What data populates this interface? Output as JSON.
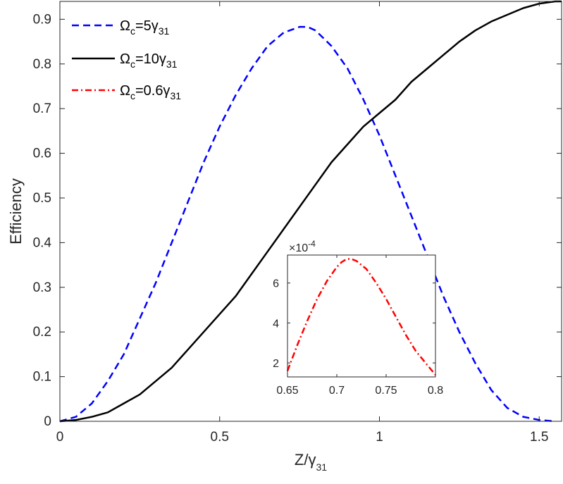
{
  "chart_data": [
    {
      "type": "line",
      "xlabel": {
        "main": "Z/γ",
        "sub": "31"
      },
      "ylabel": "Efficiency",
      "xlim": [
        0,
        1.57
      ],
      "ylim": [
        0,
        0.94
      ],
      "xticks": [
        0,
        0.5,
        1,
        1.5
      ],
      "xtick_labels": [
        "0",
        "0.5",
        "1",
        "1.5"
      ],
      "yticks": [
        0,
        0.1,
        0.2,
        0.3,
        0.4,
        0.5,
        0.6,
        0.7,
        0.8,
        0.9
      ],
      "ytick_labels": [
        "0",
        "0.1",
        "0.2",
        "0.3",
        "0.4",
        "0.5",
        "0.6",
        "0.7",
        "0.8",
        "0.9"
      ],
      "grid": false,
      "legend_position": "top-left",
      "series": [
        {
          "name": "Ωc=5γ31",
          "legend": {
            "omega": "Ω",
            "omega_sub": "c",
            "mid": "=5γ",
            "gamma_sub": "31"
          },
          "color": "#0000ff",
          "style": "dashed",
          "x": [
            0,
            0.05,
            0.1,
            0.15,
            0.2,
            0.25,
            0.3,
            0.35,
            0.4,
            0.45,
            0.5,
            0.55,
            0.6,
            0.65,
            0.7,
            0.75,
            0.775,
            0.8,
            0.85,
            0.9,
            0.95,
            1.0,
            1.05,
            1.1,
            1.15,
            1.2,
            1.25,
            1.3,
            1.35,
            1.4,
            1.45,
            1.5,
            1.55
          ],
          "y": [
            0,
            0.01,
            0.04,
            0.09,
            0.15,
            0.23,
            0.31,
            0.4,
            0.49,
            0.58,
            0.66,
            0.73,
            0.79,
            0.84,
            0.87,
            0.883,
            0.883,
            0.875,
            0.84,
            0.79,
            0.72,
            0.64,
            0.55,
            0.46,
            0.37,
            0.28,
            0.2,
            0.13,
            0.07,
            0.03,
            0.01,
            0.003,
            0
          ]
        },
        {
          "name": "Ωc=10γ31",
          "legend": {
            "omega": "Ω",
            "omega_sub": "c",
            "mid": "=10γ",
            "gamma_sub": "31"
          },
          "color": "#000000",
          "style": "solid",
          "x": [
            0,
            0.05,
            0.1,
            0.15,
            0.2,
            0.25,
            0.3,
            0.35,
            0.4,
            0.45,
            0.5,
            0.55,
            0.6,
            0.65,
            0.7,
            0.75,
            0.8,
            0.85,
            0.9,
            0.95,
            1.0,
            1.05,
            1.1,
            1.15,
            1.2,
            1.25,
            1.3,
            1.35,
            1.4,
            1.45,
            1.5,
            1.55,
            1.57
          ],
          "y": [
            0,
            0.003,
            0.01,
            0.02,
            0.04,
            0.06,
            0.09,
            0.12,
            0.16,
            0.2,
            0.24,
            0.28,
            0.33,
            0.38,
            0.43,
            0.48,
            0.53,
            0.58,
            0.62,
            0.66,
            0.69,
            0.72,
            0.76,
            0.79,
            0.82,
            0.85,
            0.875,
            0.895,
            0.91,
            0.925,
            0.935,
            0.94,
            0.94
          ]
        },
        {
          "name": "Ωc=0.6γ31",
          "legend": {
            "omega": "Ω",
            "omega_sub": "c",
            "mid": "=0.6γ",
            "gamma_sub": "31"
          },
          "color": "#ff0000",
          "style": "dashdot",
          "in_main": false
        }
      ]
    },
    {
      "type": "line",
      "role": "inset",
      "xlim": [
        0.65,
        0.8
      ],
      "ylim": [
        1.3,
        7.4
      ],
      "xticks": [
        0.65,
        0.7,
        0.75,
        0.8
      ],
      "xtick_labels": [
        "0.65",
        "0.7",
        "0.75",
        "0.8"
      ],
      "yticks": [
        2,
        4,
        6
      ],
      "ytick_labels": [
        "2",
        "4",
        "6"
      ],
      "exponent_label": {
        "base": "×10",
        "exp": "-4"
      },
      "series": [
        {
          "name": "Ωc=0.6γ31",
          "color": "#ff0000",
          "style": "dashdot",
          "x": [
            0.65,
            0.66,
            0.67,
            0.68,
            0.69,
            0.7,
            0.705,
            0.71,
            0.715,
            0.72,
            0.73,
            0.74,
            0.75,
            0.76,
            0.77,
            0.78,
            0.79,
            0.8
          ],
          "y": [
            1.6,
            2.9,
            4.1,
            5.2,
            6.1,
            6.8,
            7.05,
            7.2,
            7.2,
            7.1,
            6.7,
            6.0,
            5.2,
            4.3,
            3.4,
            2.6,
            2.0,
            1.4
          ]
        }
      ]
    }
  ]
}
